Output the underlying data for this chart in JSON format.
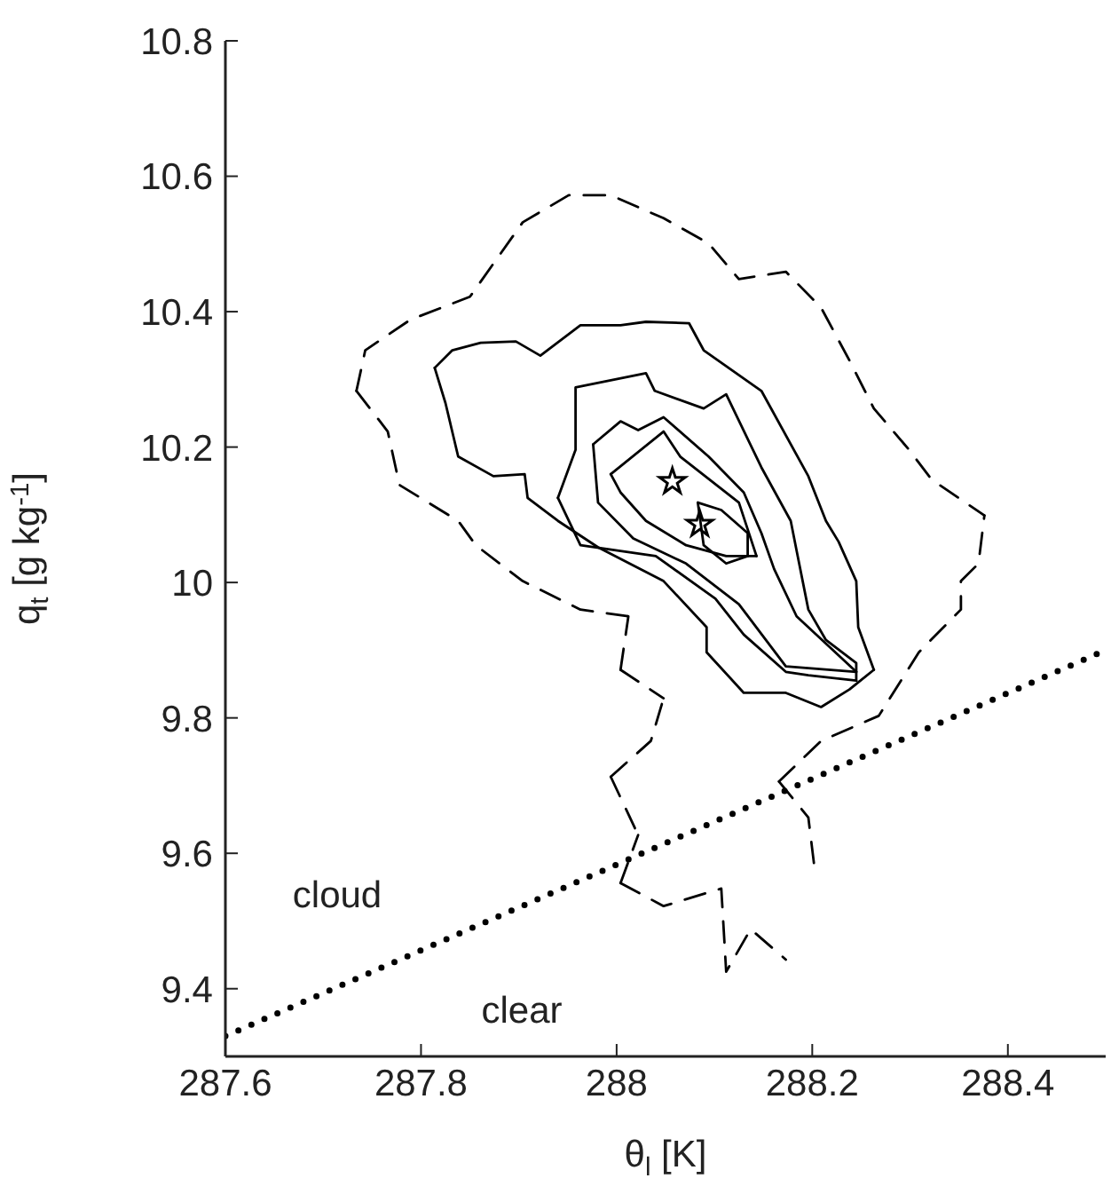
{
  "chart_data": {
    "type": "line",
    "xlabel": "θ$_{l}$  [K]",
    "ylabel": "q$_{t}$ [g kg$^{-1}$]",
    "xlim": [
      287.6,
      288.5
    ],
    "xticks": [
      287.6,
      287.8,
      288,
      288.2,
      288.4
    ],
    "ylim": [
      9.3,
      10.8
    ],
    "yticks": [
      9.4,
      9.6,
      9.8,
      10,
      10.2,
      10.4,
      10.6,
      10.8
    ],
    "grid": false,
    "legend": false,
    "annotations": [
      "cloud",
      "clear"
    ],
    "series": [
      {
        "color": "#000000",
        "line_style": "dashed",
        "marker": "none",
        "x": [
          287.734,
          287.743,
          287.789,
          287.85,
          287.904,
          287.951,
          287.994,
          288.048,
          288.094,
          288.125,
          288.173,
          288.209,
          288.238,
          288.263,
          288.299,
          288.322,
          288.376
        ],
        "values": [
          10.283,
          10.343,
          10.388,
          10.422,
          10.532,
          10.572,
          10.572,
          10.538,
          10.501,
          10.448,
          10.459,
          10.406,
          10.328,
          10.257,
          10.196,
          10.152,
          10.099
        ]
      },
      {
        "color": "#000000",
        "line_style": "dashed",
        "marker": "none",
        "x": [
          287.734,
          287.766,
          287.778,
          287.838,
          287.856,
          287.904,
          287.963,
          288.012
        ],
        "values": [
          10.283,
          10.223,
          10.144,
          10.091,
          10.055,
          10.002,
          9.96,
          9.95
        ]
      },
      {
        "color": "#000000",
        "line_style": "dashed",
        "marker": "none",
        "x": [
          288.004,
          288.012
        ],
        "values": [
          9.871,
          9.95
        ]
      },
      {
        "color": "#000000",
        "line_style": "dashed",
        "marker": "none",
        "x": [
          288.004,
          288.048
        ],
        "values": [
          9.871,
          9.829
        ]
      },
      {
        "color": "#000000",
        "line_style": "dashed",
        "marker": "none",
        "x": [
          287.994,
          288.035,
          288.048
        ],
        "values": [
          9.713,
          9.766,
          9.829
        ]
      },
      {
        "color": "#000000",
        "line_style": "dashed",
        "marker": "none",
        "x": [
          287.994,
          288.022
        ],
        "values": [
          9.713,
          9.627
        ]
      },
      {
        "color": "#000000",
        "line_style": "dashed",
        "marker": "none",
        "x": [
          288.004,
          288.022
        ],
        "values": [
          9.556,
          9.627
        ]
      },
      {
        "color": "#000000",
        "line_style": "dashed",
        "marker": "none",
        "x": [
          288.004,
          288.048,
          288.107,
          288.112,
          288.137,
          288.173
        ],
        "values": [
          9.556,
          9.522,
          9.548,
          9.425,
          9.488,
          9.443
        ]
      },
      {
        "color": "#000000",
        "line_style": "dashed",
        "marker": "none",
        "x": [
          288.166,
          288.196,
          288.202
        ],
        "values": [
          9.706,
          9.653,
          9.582
        ]
      },
      {
        "color": "#000000",
        "line_style": "dashed",
        "marker": "none",
        "x": [
          288.166,
          288.209,
          288.268,
          288.309,
          288.352,
          288.352,
          288.37,
          288.376
        ],
        "values": [
          9.706,
          9.766,
          9.803,
          9.897,
          9.96,
          10.002,
          10.028,
          10.099
        ]
      },
      {
        "color": "#000000",
        "line_style": "solid",
        "marker": "none",
        "x": [
          287.814,
          287.832,
          287.861,
          287.897,
          287.922,
          287.963,
          288.004,
          288.03,
          288.074,
          288.089,
          288.148,
          288.196,
          288.214,
          288.227,
          288.245,
          288.247,
          288.263
        ],
        "values": [
          10.317,
          10.343,
          10.354,
          10.356,
          10.335,
          10.38,
          10.38,
          10.385,
          10.383,
          10.343,
          10.283,
          10.157,
          10.091,
          10.06,
          10.002,
          9.934,
          9.871
        ]
      },
      {
        "color": "#000000",
        "line_style": "solid",
        "marker": "none",
        "x": [
          287.814,
          287.825,
          287.838,
          287.874,
          287.906,
          287.909,
          287.94,
          287.981,
          288.048,
          288.092,
          288.092,
          288.13,
          288.173,
          288.209,
          288.238,
          288.263
        ],
        "values": [
          10.317,
          10.265,
          10.186,
          10.157,
          10.16,
          10.125,
          10.091,
          10.052,
          10.002,
          9.934,
          9.897,
          9.837,
          9.837,
          9.816,
          9.842,
          9.871
        ]
      },
      {
        "color": "#000000",
        "line_style": "solid",
        "marker": "none",
        "x": [
          287.94,
          287.958,
          287.958,
          288.03,
          288.039,
          288.089,
          288.112,
          288.148,
          288.178,
          288.184,
          288.196,
          288.214,
          288.245,
          288.245
        ],
        "values": [
          10.125,
          10.196,
          10.288,
          10.309,
          10.283,
          10.257,
          10.278,
          10.17,
          10.091,
          10.047,
          9.96,
          9.915,
          9.881,
          9.855
        ]
      },
      {
        "color": "#000000",
        "line_style": "solid",
        "marker": "none",
        "x": [
          287.94,
          287.963,
          288.04,
          288.101,
          288.13,
          288.173,
          288.196,
          288.245
        ],
        "values": [
          10.125,
          10.055,
          10.039,
          9.976,
          9.923,
          9.868,
          9.863,
          9.855
        ]
      },
      {
        "color": "#000000",
        "line_style": "solid",
        "marker": "none",
        "x": [
          287.976,
          288.004,
          288.022,
          288.048,
          288.094,
          288.13,
          288.148,
          288.161,
          288.184,
          288.245
        ],
        "values": [
          10.204,
          10.238,
          10.225,
          10.244,
          10.186,
          10.133,
          10.073,
          10.02,
          9.95,
          9.868
        ]
      },
      {
        "color": "#000000",
        "line_style": "solid",
        "marker": "none",
        "x": [
          287.976,
          287.981,
          288.017,
          288.071,
          288.125,
          288.173,
          288.245
        ],
        "values": [
          10.204,
          10.118,
          10.065,
          10.028,
          9.968,
          9.876,
          9.868
        ]
      },
      {
        "color": "#000000",
        "line_style": "solid",
        "marker": "none",
        "x": [
          287.994,
          288.048,
          288.065,
          288.125,
          288.143
        ],
        "values": [
          10.16,
          10.223,
          10.186,
          10.118,
          10.039
        ]
      },
      {
        "color": "#000000",
        "line_style": "solid",
        "marker": "none",
        "x": [
          287.994,
          288.004,
          288.03,
          288.071,
          288.112,
          288.143
        ],
        "values": [
          10.16,
          10.133,
          10.091,
          10.055,
          10.039,
          10.039
        ]
      },
      {
        "color": "#000000",
        "line_style": "solid",
        "marker": "none",
        "x": [
          288.083,
          288.107,
          288.134,
          288.134
        ],
        "values": [
          10.118,
          10.107,
          10.073,
          10.039
        ]
      },
      {
        "color": "#000000",
        "line_style": "solid",
        "marker": "none",
        "x": [
          288.083,
          288.089,
          288.112,
          288.134
        ],
        "values": [
          10.118,
          10.055,
          10.028,
          10.039
        ]
      },
      {
        "color": "#000000",
        "line_style": "dotted",
        "marker": "none",
        "x": [
          287.6,
          288.5
        ],
        "values": [
          9.33,
          9.9
        ]
      },
      {
        "type": "scatter",
        "color": "#000000",
        "marker": "star",
        "x": [
          288.057,
          288.085
        ],
        "values": [
          10.149,
          10.086
        ]
      }
    ]
  }
}
